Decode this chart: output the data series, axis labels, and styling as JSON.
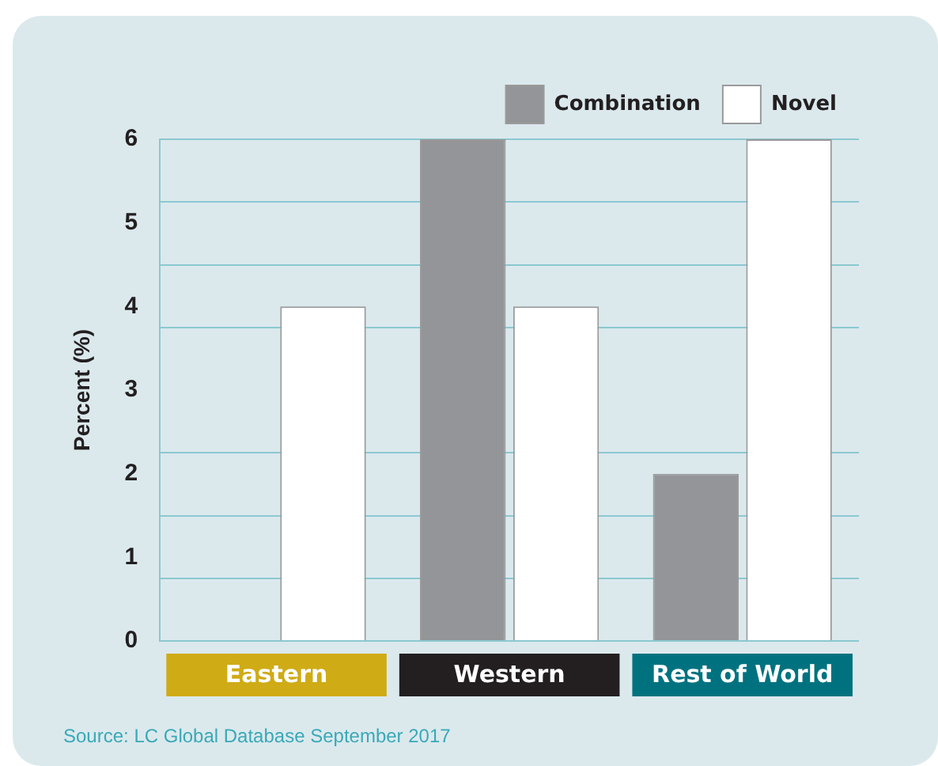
{
  "chart_data": {
    "type": "bar",
    "ylabel": "Percent (%)",
    "categories": [
      "Eastern",
      "Western",
      "Rest of World"
    ],
    "series": [
      {
        "name": "Combination",
        "color": "#939598",
        "values": [
          0,
          6,
          2
        ]
      },
      {
        "name": "Novel",
        "color": "#ffffff",
        "values": [
          4,
          4,
          6
        ]
      }
    ],
    "ylim": [
      0,
      6
    ],
    "yticks": [
      0,
      1,
      2,
      3,
      4,
      5,
      6,
      {
        "value": 0.75,
        "label": null
      },
      {
        "value": 1.5,
        "label": null
      },
      {
        "value": 2.25,
        "label": null
      },
      {
        "value": 3.75,
        "label": null
      },
      {
        "value": 4.5,
        "label": null
      },
      {
        "value": 5.25,
        "label": null
      }
    ],
    "grid": "y",
    "legend": "top right",
    "annotations": [
      "Source: LC Global Database September 2017"
    ]
  }
}
